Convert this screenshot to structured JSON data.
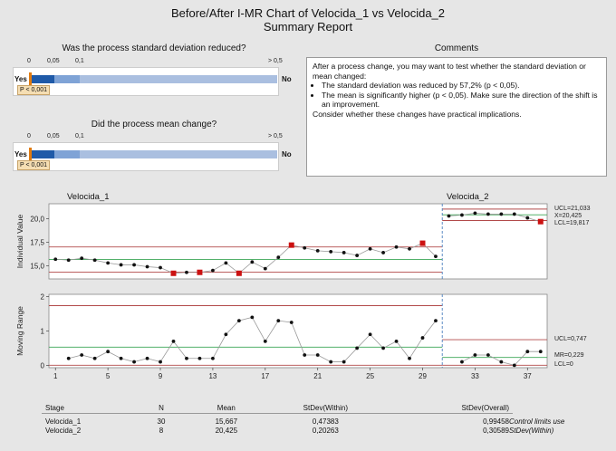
{
  "header": {
    "title": "Before/After I-MR Chart of Velocida_1 vs Velocida_2",
    "subtitle": "Summary Report"
  },
  "sd_test": {
    "question": "Was the process standard deviation reduced?",
    "ticks": [
      "0",
      "0,05",
      "0,1",
      "> 0,5"
    ],
    "yes_label": "Yes",
    "no_label": "No",
    "p_label": "P < 0,001",
    "p_value": 0.001
  },
  "mean_test": {
    "question": "Did the process mean change?",
    "ticks": [
      "0",
      "0,05",
      "0,1",
      "> 0,5"
    ],
    "yes_label": "Yes",
    "no_label": "No",
    "p_label": "P < 0,001",
    "p_value": 0.001
  },
  "comments": {
    "title": "Comments",
    "intro": "After a process change, you may want to test whether the standard deviation or mean changed:",
    "bullets": [
      "The standard deviation was reduced by 57,2% (p < 0,05).",
      "The mean is significantly higher (p < 0,05). Make sure the direction of the shift is an improvement."
    ],
    "outro": "Consider whether these changes have practical implications."
  },
  "chart_data": [
    {
      "type": "line",
      "chart": "individual-value",
      "ylabel": "Individual Value",
      "stage_labels": [
        "Velocida_1",
        "Velocida_2"
      ],
      "yticks": [
        "15,0",
        "17,5",
        "20,0"
      ],
      "ytick_values": [
        15.0,
        17.5,
        20.0
      ],
      "ylim": [
        13.6,
        21.6
      ],
      "x": [
        1,
        2,
        3,
        4,
        5,
        6,
        7,
        8,
        9,
        10,
        11,
        12,
        13,
        14,
        15,
        16,
        17,
        18,
        19,
        20,
        21,
        22,
        23,
        24,
        25,
        26,
        27,
        28,
        29,
        30,
        31,
        32,
        33,
        34,
        35,
        36,
        37,
        38
      ],
      "values": [
        15.7,
        15.6,
        15.8,
        15.6,
        15.3,
        15.1,
        15.1,
        14.9,
        14.8,
        14.2,
        14.3,
        14.3,
        14.5,
        15.3,
        14.2,
        15.4,
        14.7,
        15.9,
        17.2,
        16.9,
        16.6,
        16.5,
        16.4,
        16.1,
        16.8,
        16.4,
        17.0,
        16.8,
        17.4,
        16.0,
        20.3,
        20.4,
        20.6,
        20.5,
        20.5,
        20.5,
        20.1,
        19.7
      ],
      "out_of_control": [
        10,
        12,
        15,
        19,
        29,
        38
      ],
      "stage1": {
        "ucl": 17.0,
        "center": 15.667,
        "lcl": 14.33
      },
      "stage2": {
        "ucl": 21.033,
        "center": 20.425,
        "lcl": 19.817
      },
      "right_labels": [
        "UCL=21,033",
        "X=20,425",
        "LCL=19,817"
      ]
    },
    {
      "type": "line",
      "chart": "moving-range",
      "ylabel": "Moving Range",
      "yticks": [
        "0",
        "1",
        "2"
      ],
      "ytick_values": [
        0,
        1,
        2
      ],
      "ylim": [
        -0.07,
        2.07
      ],
      "x": [
        2,
        3,
        4,
        5,
        6,
        7,
        8,
        9,
        10,
        11,
        12,
        13,
        14,
        15,
        16,
        17,
        18,
        19,
        20,
        21,
        22,
        23,
        24,
        25,
        26,
        27,
        28,
        29,
        30,
        32,
        33,
        34,
        35,
        36,
        37,
        38
      ],
      "values": [
        0.2,
        0.3,
        0.2,
        0.4,
        0.2,
        0.1,
        0.2,
        0.1,
        0.7,
        0.2,
        0.2,
        0.2,
        0.9,
        1.3,
        1.4,
        0.7,
        1.3,
        1.25,
        0.3,
        0.3,
        0.1,
        0.1,
        0.5,
        0.9,
        0.5,
        0.7,
        0.2,
        0.8,
        1.3,
        0.1,
        0.3,
        0.3,
        0.1,
        0.0,
        0.4,
        0.4
      ],
      "stage1": {
        "ucl": 1.74,
        "center": 0.53,
        "lcl": 0
      },
      "stage2": {
        "ucl": 0.747,
        "center": 0.229,
        "lcl": 0
      },
      "right_labels": [
        "UCL=0,747",
        "MR=0,229",
        "LCL=0"
      ],
      "xticks": [
        1,
        5,
        9,
        13,
        17,
        21,
        25,
        29,
        33,
        37
      ],
      "xtick_labels": [
        "1",
        "5",
        "9",
        "13",
        "17",
        "21",
        "25",
        "29",
        "33",
        "37"
      ],
      "xlim": [
        0.5,
        38.5
      ],
      "stage_split": 30.5
    }
  ],
  "stats_table": {
    "headers": [
      "Stage",
      "N",
      "Mean",
      "StDev(Within)",
      "StDev(Overall)"
    ],
    "rows": [
      [
        "Velocida_1",
        "30",
        "15,667",
        "0,47383",
        "0,99458"
      ],
      [
        "Velocida_2",
        "8",
        "20,425",
        "0,20263",
        "0,30589"
      ]
    ],
    "footnote_line1": "Control limits use",
    "footnote_line2": "StDev(Within)"
  },
  "colors": {
    "limit_line": "#b24a4a",
    "center_line": "#3aa655",
    "ooc_marker": "#cc1111",
    "point": "#111111",
    "bar_dark": "#1f5aa8",
    "bar_light": "#aabfe0",
    "split_line": "#4a7fbf"
  }
}
